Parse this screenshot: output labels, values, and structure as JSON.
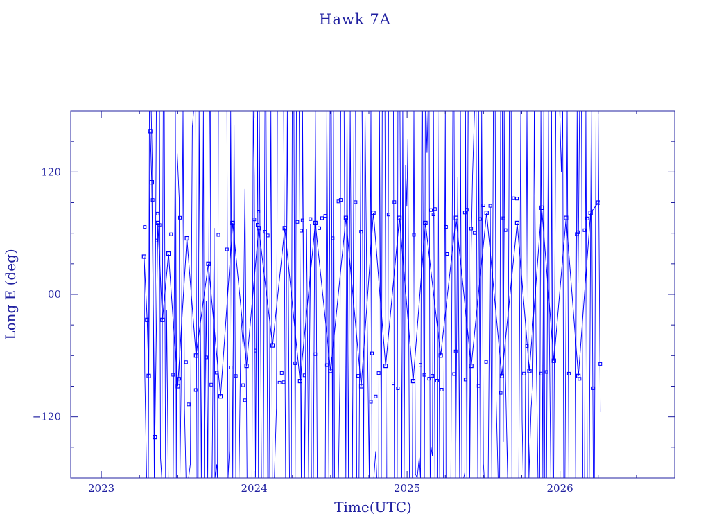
{
  "chart_data": {
    "type": "line",
    "title": "Hawk 7A",
    "xlabel": "Time(UTC)",
    "ylabel": "Long E (deg)",
    "xlim": [
      2022.8,
      2026.75
    ],
    "ylim": [
      -180,
      180
    ],
    "x_ticks": [
      2023,
      2024,
      2025,
      2026
    ],
    "x_tick_labels": [
      "2023",
      "2024",
      "2025",
      "2026"
    ],
    "y_ticks": [
      -120,
      0,
      120
    ],
    "y_tick_labels": [
      "−120",
      "00",
      "120"
    ],
    "data_start": 2023.28,
    "data_end": 2026.25,
    "series": [
      {
        "color": "#0000ff",
        "marker": "square",
        "x": [
          2023.28,
          2023.3,
          2023.31,
          2023.32,
          2023.33,
          2023.35,
          2023.37,
          2023.4,
          2023.44,
          2023.5,
          2023.56,
          2023.62,
          2023.7,
          2023.78,
          2023.86,
          2023.95,
          2024.03,
          2024.12,
          2024.2,
          2024.3,
          2024.4,
          2024.5,
          2024.6,
          2024.7,
          2024.78,
          2024.86,
          2024.95,
          2025.04,
          2025.12,
          2025.22,
          2025.32,
          2025.42,
          2025.52,
          2025.62,
          2025.72,
          2025.8,
          2025.88,
          2025.96,
          2026.04,
          2026.12,
          2026.2,
          2026.25
        ],
        "y": [
          37,
          -25,
          -80,
          160,
          110,
          -140,
          70,
          -25,
          40,
          -90,
          55,
          -60,
          30,
          -100,
          70,
          -70,
          65,
          -50,
          65,
          -85,
          70,
          -75,
          75,
          -90,
          80,
          -70,
          75,
          -85,
          70,
          -60,
          75,
          -70,
          80,
          -80,
          70,
          -75,
          85,
          -65,
          75,
          -80,
          80,
          90
        ]
      }
    ]
  }
}
